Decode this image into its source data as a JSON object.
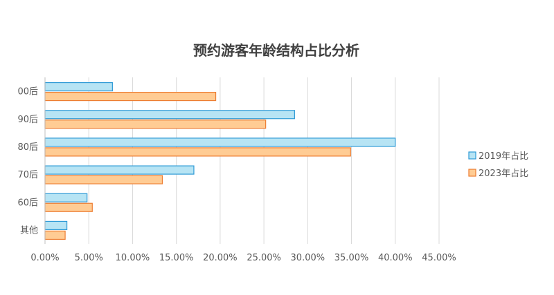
{
  "chart_data": {
    "type": "bar",
    "orientation": "horizontal",
    "title": "预约游客年龄结构占比分析",
    "categories": [
      "00后",
      "90后",
      "80后",
      "70后",
      "60后",
      "其他"
    ],
    "series": [
      {
        "name": "2019年占比",
        "values": [
          7.7,
          28.5,
          40.0,
          17.0,
          4.8,
          2.5
        ],
        "fill": "#b7e4f4",
        "stroke": "#2e9ad6"
      },
      {
        "name": "2023年占比",
        "values": [
          19.5,
          25.2,
          34.9,
          13.4,
          5.4,
          2.3
        ],
        "fill": "#ffcc94",
        "stroke": "#ed7d31"
      }
    ],
    "xlim": [
      0,
      45
    ],
    "xticks": [
      "0.00%",
      "5.00%",
      "10.00%",
      "15.00%",
      "20.00%",
      "25.00%",
      "30.00%",
      "35.00%",
      "40.00%",
      "45.00%"
    ],
    "xlabel": "",
    "ylabel": "",
    "grid": true,
    "legend_position": "right"
  }
}
